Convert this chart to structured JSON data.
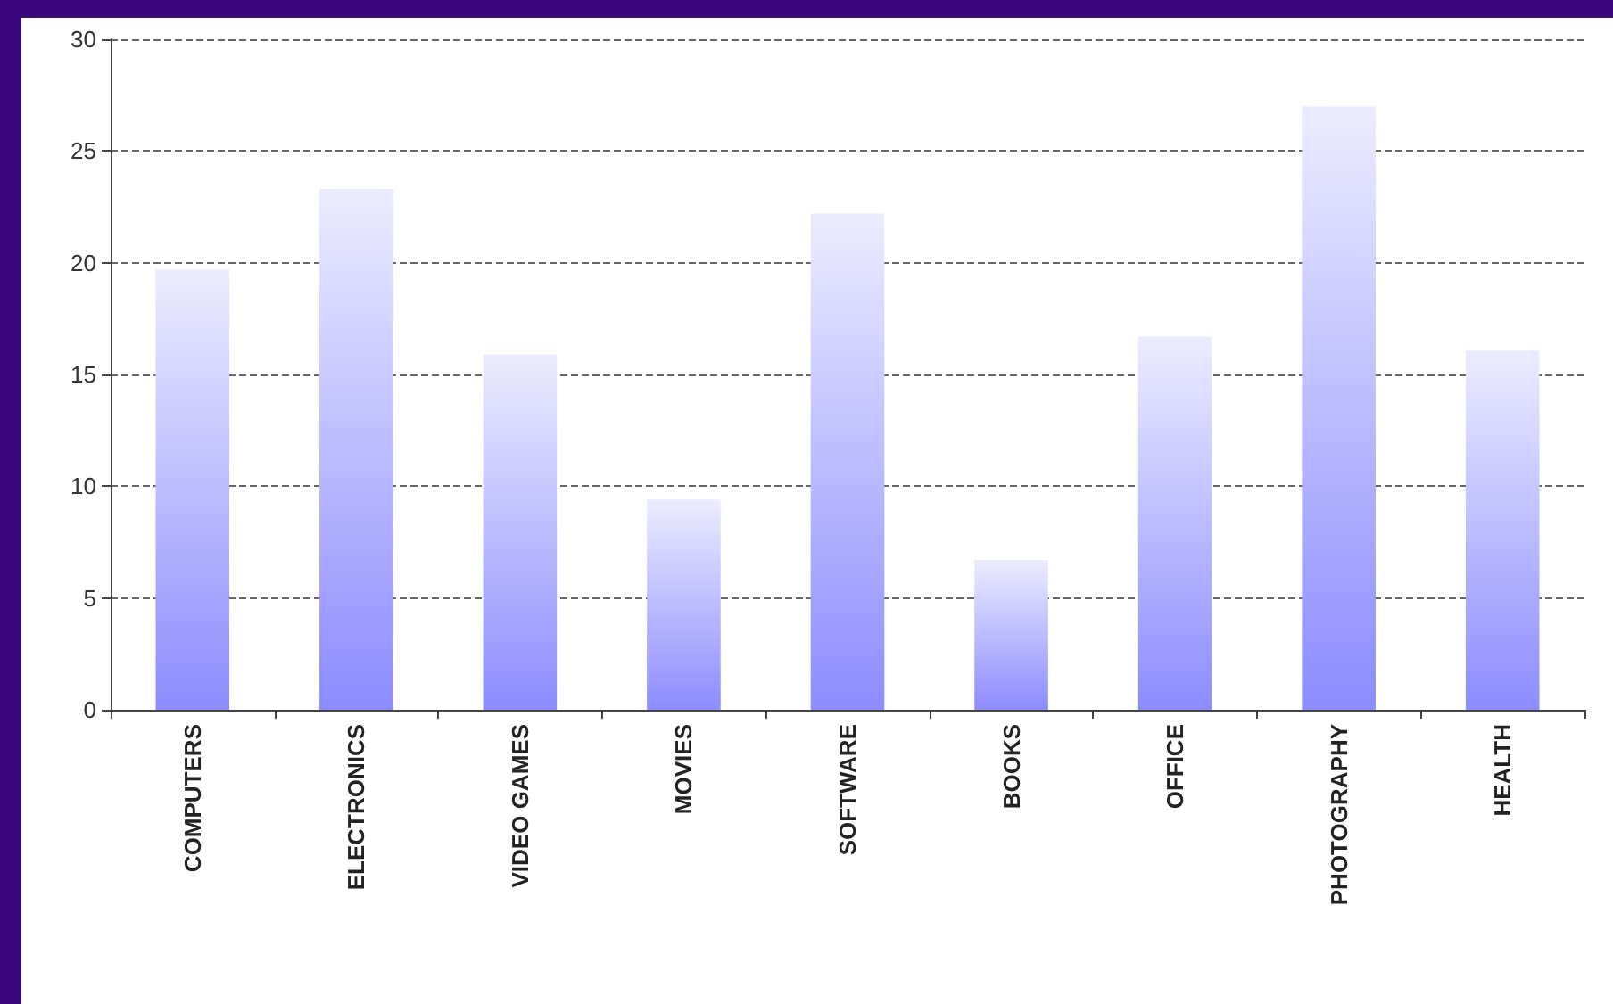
{
  "chart_data": {
    "type": "bar",
    "categories": [
      "COMPUTERS",
      "ELECTRONICS",
      "VIDEO GAMES",
      "MOVIES",
      "SOFTWARE",
      "BOOKS",
      "OFFICE",
      "PHOTOGRAPHY",
      "HEALTH"
    ],
    "values": [
      19.7,
      23.3,
      15.9,
      9.4,
      22.2,
      6.7,
      16.7,
      27.0,
      16.1
    ],
    "color": "#8c8cff",
    "ylim": [
      0,
      30
    ],
    "yticks": [
      0,
      5,
      10,
      15,
      20,
      25,
      30
    ],
    "grid": "y"
  }
}
